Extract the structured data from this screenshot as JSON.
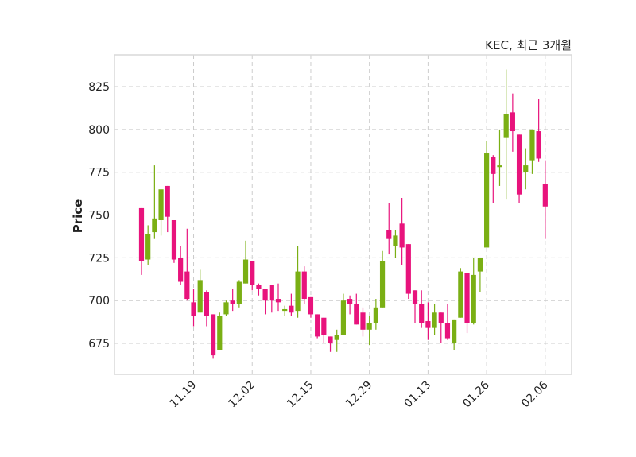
{
  "chart_data": {
    "type": "candlestick",
    "title": "KEC, 최근 3개월",
    "xlabel": "",
    "ylabel": "Price",
    "ylim": [
      656.9,
      843.6
    ],
    "xlim": [
      -4.15,
      66.05
    ],
    "grid": true,
    "yticks": [
      675,
      700,
      725,
      750,
      775,
      800,
      825
    ],
    "xticks": [
      {
        "index": 8,
        "label": "11.19"
      },
      {
        "index": 17,
        "label": "12.02"
      },
      {
        "index": 26,
        "label": "12.15"
      },
      {
        "index": 35,
        "label": "12.29"
      },
      {
        "index": 44,
        "label": "01.13"
      },
      {
        "index": 53,
        "label": "01.26"
      },
      {
        "index": 62,
        "label": "02.06"
      }
    ],
    "colors": {
      "up": "#7aaf14",
      "down": "#e8137c",
      "grid": "#cccccc"
    },
    "ohlc": [
      [
        754,
        754,
        715,
        723
      ],
      [
        724,
        744,
        721,
        739
      ],
      [
        740,
        779,
        736,
        748
      ],
      [
        747,
        765,
        738,
        765
      ],
      [
        767,
        767,
        740,
        749
      ],
      [
        747,
        747,
        722,
        724
      ],
      [
        725,
        732,
        709,
        711
      ],
      [
        717,
        742,
        700,
        701
      ],
      [
        699,
        707,
        685,
        691
      ],
      [
        693,
        718,
        693,
        712
      ],
      [
        705,
        706,
        685,
        691
      ],
      [
        692,
        692,
        666,
        668
      ],
      [
        671,
        693,
        671,
        691
      ],
      [
        692,
        700,
        691,
        699
      ],
      [
        700,
        707,
        694,
        698
      ],
      [
        698,
        712,
        696,
        711
      ],
      [
        710,
        735,
        710,
        724
      ],
      [
        723,
        723,
        706,
        709
      ],
      [
        709,
        710,
        703,
        707
      ],
      [
        707,
        707,
        692,
        700
      ],
      [
        709,
        709,
        693,
        700
      ],
      [
        701,
        710,
        694,
        699
      ],
      [
        694,
        697,
        691,
        695
      ],
      [
        697,
        704,
        691,
        693
      ],
      [
        694,
        732,
        690,
        717
      ],
      [
        717,
        720,
        698,
        701
      ],
      [
        702,
        702,
        690,
        692
      ],
      [
        692,
        692,
        678,
        679
      ],
      [
        690,
        690,
        675,
        680
      ],
      [
        679,
        679,
        670,
        675
      ],
      [
        677,
        683,
        670,
        680
      ],
      [
        680,
        704,
        680,
        700
      ],
      [
        701,
        703,
        692,
        698
      ],
      [
        698,
        704,
        686,
        686
      ],
      [
        693,
        696,
        679,
        683
      ],
      [
        683,
        691,
        674,
        687
      ],
      [
        687,
        701,
        683,
        696
      ],
      [
        696,
        729,
        696,
        723
      ],
      [
        741,
        757,
        727,
        736
      ],
      [
        732,
        741,
        725,
        738
      ],
      [
        745,
        760,
        721,
        731
      ],
      [
        733,
        733,
        701,
        704
      ],
      [
        706,
        706,
        687,
        698
      ],
      [
        698,
        706,
        684,
        687
      ],
      [
        688,
        699,
        677,
        684
      ],
      [
        684,
        698,
        680,
        693
      ],
      [
        693,
        693,
        675,
        687
      ],
      [
        687,
        698,
        677,
        678
      ],
      [
        675,
        689,
        671,
        689
      ],
      [
        690,
        719,
        690,
        717
      ],
      [
        716,
        716,
        681,
        687
      ],
      [
        687,
        725,
        686,
        715
      ],
      [
        717,
        725,
        705,
        725
      ],
      [
        731,
        793,
        731,
        786
      ],
      [
        784,
        785,
        757,
        774
      ],
      [
        778,
        800,
        767,
        779
      ],
      [
        795,
        835,
        759,
        809
      ],
      [
        810,
        821,
        787,
        799
      ],
      [
        797,
        797,
        757,
        762
      ],
      [
        775,
        789,
        765,
        779
      ],
      [
        782,
        800,
        774,
        800
      ],
      [
        799,
        818,
        781,
        783
      ],
      [
        768,
        782,
        736,
        755
      ]
    ]
  }
}
